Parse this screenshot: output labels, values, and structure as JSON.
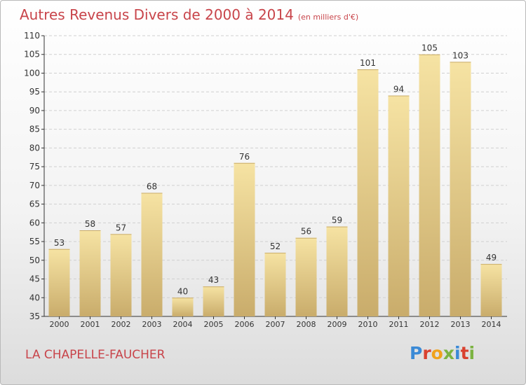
{
  "header": {
    "title": "Autres Revenus Divers de 2000 à 2014",
    "unit": "(en milliers d'€)"
  },
  "footer": {
    "commune": "LA CHAPELLE-FAUCHER",
    "brand": "Proxiti"
  },
  "colors": {
    "title": "#c8444a",
    "bar_light": "#f6e3a3",
    "bar_dark": "#c9ac6b",
    "grid": "#d0d0d0",
    "axis": "#333333",
    "logo": [
      "#3b8ad6",
      "#d9412f",
      "#f0a21c",
      "#7cb342",
      "#3b8ad6",
      "#d9412f",
      "#7cb342"
    ]
  },
  "chart_data": {
    "type": "bar",
    "title": "Autres Revenus Divers de 2000 à 2014",
    "xlabel": "",
    "ylabel": "",
    "categories": [
      "2000",
      "2001",
      "2002",
      "2003",
      "2004",
      "2005",
      "2006",
      "2007",
      "2008",
      "2009",
      "2010",
      "2011",
      "2012",
      "2013",
      "2014"
    ],
    "values": [
      53,
      58,
      57,
      68,
      40,
      43,
      76,
      52,
      56,
      59,
      101,
      94,
      105,
      103,
      49
    ],
    "ylim": [
      35,
      110
    ],
    "yticks": [
      35,
      40,
      45,
      50,
      55,
      60,
      65,
      70,
      75,
      80,
      85,
      90,
      95,
      100,
      105,
      110
    ],
    "grid": "horizontal dashed",
    "legend": "none"
  }
}
